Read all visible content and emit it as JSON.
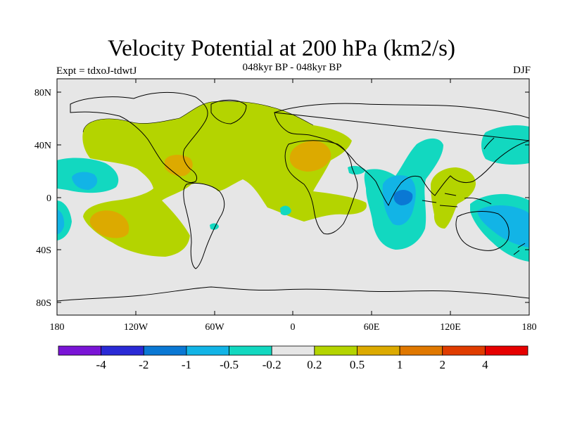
{
  "title": "Velocity Potential at 200 hPa (km2/s)",
  "subtitle": "048kyr BP - 048kyr BP",
  "experiment": "Expt = tdxoJ-tdwtJ",
  "season": "DJF",
  "map": {
    "projection": "cylindrical equidistant",
    "lon_range": [
      -180,
      180
    ],
    "lat_range": [
      -90,
      90
    ],
    "xticks": [
      "180",
      "120W",
      "60W",
      "0",
      "60E",
      "120E",
      "180"
    ],
    "yticks": [
      "80N",
      "40N",
      "0",
      "40S",
      "80S"
    ]
  },
  "colorbar": {
    "labels": [
      "-4",
      "-2",
      "-1",
      "-0.5",
      "-0.2",
      "0.2",
      "0.5",
      "1",
      "2",
      "4"
    ],
    "colors": [
      "#7a14d6",
      "#2a2ad6",
      "#0a78d4",
      "#12b4e6",
      "#12d8c0",
      "#e6e6e6",
      "#b4d400",
      "#dcaa00",
      "#e07800",
      "#e03c00",
      "#e60000"
    ]
  },
  "colors": {
    "background": "#e6e6e6",
    "positive_weak": "#b4d400",
    "positive_mid": "#dcaa00",
    "negative_weak": "#12d8c0",
    "negative_mid": "#12b4e6",
    "negative_strong": "#0a78d4"
  }
}
